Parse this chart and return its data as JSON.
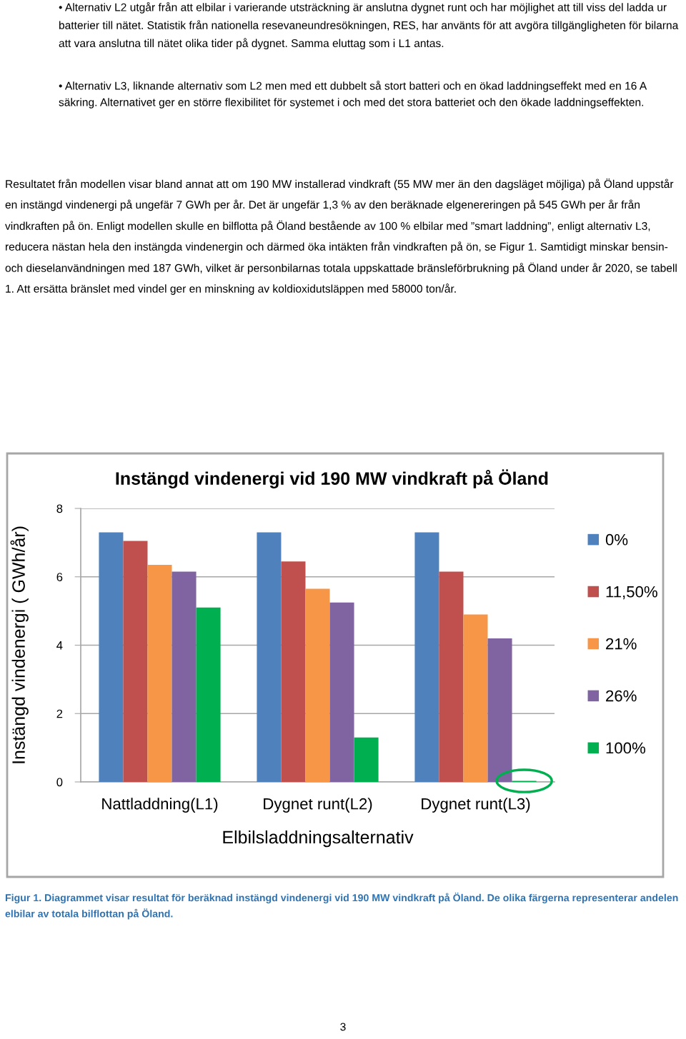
{
  "chart_data": {
    "type": "bar",
    "title": "Instängd vindenergi vid 190 MW vindkraft på Öland",
    "xlabel": "Elbilsladdningsalternativ",
    "ylabel": "Instängd vindenergi ( GWh/år)",
    "categories": [
      "Nattladdning(L1)",
      "Dygnet runt(L2)",
      "Dygnet runt(L3)"
    ],
    "series": [
      {
        "name": "0%",
        "color": "#4f81bd",
        "values": [
          7.3,
          7.3,
          7.3
        ]
      },
      {
        "name": "11,50%",
        "color": "#c0504d",
        "values": [
          7.05,
          6.45,
          6.15
        ]
      },
      {
        "name": "21%",
        "color": "#f79646",
        "values": [
          6.35,
          5.65,
          4.9
        ]
      },
      {
        "name": "26%",
        "color": "#8064a2",
        "values": [
          6.15,
          5.25,
          4.2
        ]
      },
      {
        "name": "100%",
        "color": "#00b050",
        "values": [
          5.1,
          1.3,
          0.03
        ]
      }
    ],
    "ylim": [
      0,
      8
    ],
    "yticks": [
      0,
      2,
      4,
      6,
      8
    ],
    "grid": "y",
    "legend": "right",
    "annotations": [
      "• Alternativ L2 utgår från att elbilar i varierande utsträckning är anslutna dygnet runt och har möjlighet att till viss del ladda ur batterier till nätet. Statistik från nationella resevaneundresökningen, RES, har använts för att avgöra tillgängligheten för bilarna att vara anslutna till nätet olika tider på dygnet. Samma eluttag som i L1 antas.",
      "• Alternativ L3, liknande alternativ som L2 men med ett dubbelt så stort batteri och en ökad laddningseffekt med en 16 A säkring. Alternativet ger en större flexibilitet för systemet i och med det stora batteriet och den ökade laddningseffekten.",
      "Resultatet från modellen visar bland annat att om 190 MW installerad vindkraft (55 MW mer än den dagsläget möjliga) på Öland uppstår en instängd vindenergi på ungefär 7 GWh per år. Det är ungefär 1,3 % av den beräknade elgenereringen på 545 GWh per år från vindkraften på ön. Enligt modellen skulle en bilflotta på Öland bestående av 100 % elbilar med ”smart laddning”, enligt alternativ L3, reducera nästan hela den instängda vindenergin och därmed öka intäkten från vindkraften på ön, se Figur 1. Samtidigt minskar bensin- och dieselanvändningen med 187 GWh, vilket är personbilarnas totala uppskattade bränsleförbrukning på Öland under år 2020, se tabell 1. Att ersätta bränslet med vindel ger en minskning av koldioxidutsläppen med 58000 ton/år.",
      "Figur 1. Diagrammet visar resultat för beräknad instängd vindenergi vid 190 MW vindkraft på Öland. De olika färgerna representerar andelen elbilar av totala bilflottan på Öland.",
      "3"
    ]
  }
}
